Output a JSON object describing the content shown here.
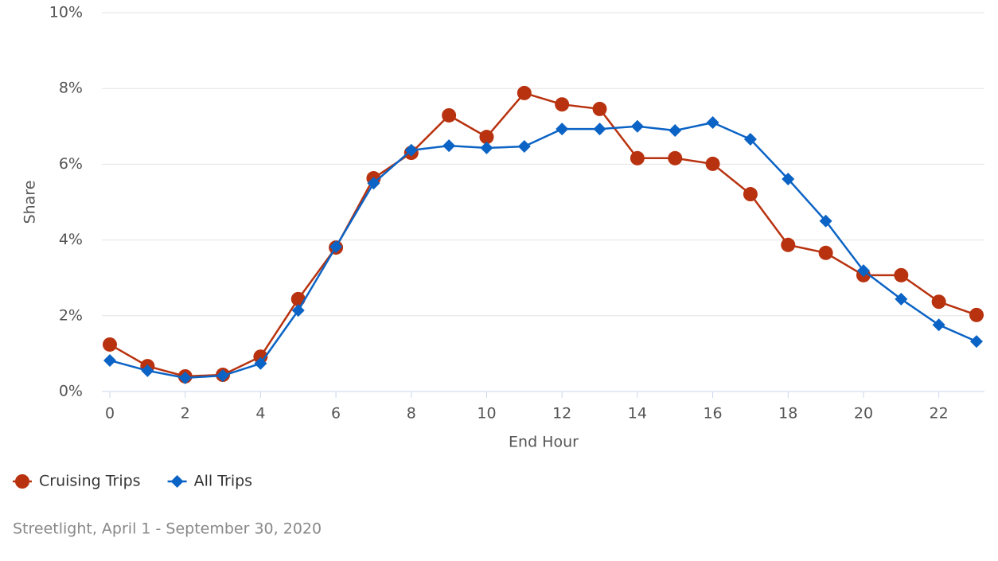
{
  "chart_data": {
    "type": "line",
    "y_label": "Share",
    "x_label": "End Hour",
    "source": "Streetlight, April 1 - September 30, 2020",
    "x": [
      0,
      1,
      2,
      3,
      4,
      5,
      6,
      7,
      8,
      9,
      10,
      11,
      12,
      13,
      14,
      15,
      16,
      17,
      18,
      19,
      20,
      21,
      22,
      23
    ],
    "series": [
      {
        "name": "Cruising Trips",
        "color": "#b8320f",
        "marker": "circle",
        "values": [
          1.24,
          0.67,
          0.4,
          0.44,
          0.92,
          2.44,
          3.8,
          5.63,
          6.3,
          7.29,
          6.72,
          7.88,
          7.58,
          7.46,
          6.16,
          6.16,
          6.01,
          5.21,
          3.87,
          3.66,
          3.07,
          3.07,
          2.37,
          2.02
        ]
      },
      {
        "name": "All Trips",
        "color": "#0b63c5",
        "marker": "diamond",
        "values": [
          0.82,
          0.55,
          0.36,
          0.42,
          0.74,
          2.14,
          3.82,
          5.5,
          6.37,
          6.49,
          6.43,
          6.47,
          6.93,
          6.93,
          7.0,
          6.89,
          7.1,
          6.66,
          5.61,
          4.5,
          3.19,
          2.44,
          1.76,
          1.32
        ]
      }
    ],
    "xlim": [
      0,
      23
    ],
    "xticks": [
      0,
      2,
      4,
      6,
      8,
      10,
      12,
      14,
      16,
      18,
      20,
      22
    ],
    "ylim": [
      0,
      10
    ],
    "yticks": [
      {
        "value": 0,
        "label": "0%"
      },
      {
        "value": 2,
        "label": "2%"
      },
      {
        "value": 4,
        "label": "4%"
      },
      {
        "value": 6,
        "label": "6%"
      },
      {
        "value": 8,
        "label": "8%"
      },
      {
        "value": 10,
        "label": "10%"
      }
    ],
    "grid": true,
    "legend": "bottom-left"
  }
}
